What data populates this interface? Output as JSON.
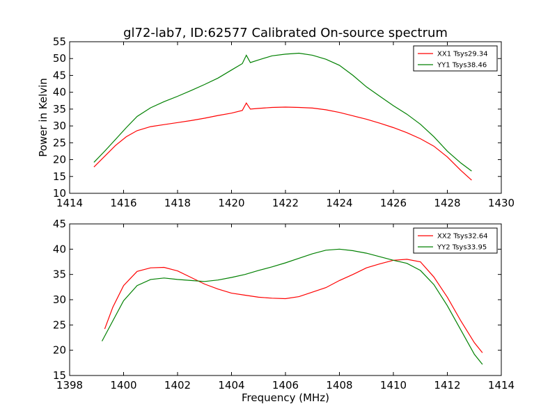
{
  "figure": {
    "title": "gl72-lab7, ID:62577 Calibrated On-source spectrum",
    "ylabel": "Power in Kelvin",
    "xlabel": "Frequency (MHz)"
  },
  "chart_data": [
    {
      "type": "line",
      "xlim": [
        1414,
        1430
      ],
      "ylim": [
        10,
        55
      ],
      "xticks": [
        1414,
        1416,
        1418,
        1420,
        1422,
        1424,
        1426,
        1428,
        1430
      ],
      "yticks": [
        10,
        15,
        20,
        25,
        30,
        35,
        40,
        45,
        50,
        55
      ],
      "legend_position": "top-right",
      "series": [
        {
          "name": "XX1 Tsys29.34",
          "color": "#ff0000",
          "x": [
            1414.9,
            1415.3,
            1415.7,
            1416.1,
            1416.5,
            1417.0,
            1417.5,
            1418.0,
            1418.5,
            1419.0,
            1419.5,
            1420.0,
            1420.4,
            1420.55,
            1420.7,
            1421.0,
            1421.5,
            1422.0,
            1422.5,
            1423.0,
            1423.5,
            1424.0,
            1424.5,
            1425.0,
            1425.5,
            1426.0,
            1426.5,
            1427.0,
            1427.5,
            1428.0,
            1428.5,
            1428.9
          ],
          "y": [
            17.8,
            21.0,
            24.2,
            26.8,
            28.6,
            29.8,
            30.4,
            31.0,
            31.6,
            32.3,
            33.1,
            33.8,
            34.6,
            36.8,
            35.0,
            35.2,
            35.5,
            35.6,
            35.5,
            35.3,
            34.8,
            34.0,
            33.0,
            32.0,
            30.8,
            29.5,
            28.0,
            26.2,
            24.0,
            20.8,
            16.8,
            13.9
          ]
        },
        {
          "name": "YY1 Tsys38.46",
          "color": "#008000",
          "x": [
            1414.9,
            1415.3,
            1415.7,
            1416.1,
            1416.5,
            1417.0,
            1417.5,
            1418.0,
            1418.5,
            1419.0,
            1419.5,
            1420.0,
            1420.4,
            1420.55,
            1420.7,
            1421.0,
            1421.5,
            1422.0,
            1422.5,
            1423.0,
            1423.5,
            1424.0,
            1424.5,
            1425.0,
            1425.5,
            1426.0,
            1426.5,
            1427.0,
            1427.5,
            1428.0,
            1428.5,
            1428.9
          ],
          "y": [
            19.2,
            22.5,
            26.0,
            29.5,
            32.8,
            35.4,
            37.2,
            38.8,
            40.5,
            42.3,
            44.2,
            46.6,
            48.5,
            51.0,
            48.8,
            49.6,
            50.8,
            51.3,
            51.6,
            51.0,
            49.8,
            48.0,
            45.0,
            41.6,
            38.8,
            36.0,
            33.5,
            30.5,
            26.8,
            22.5,
            19.0,
            16.6
          ]
        }
      ]
    },
    {
      "type": "line",
      "xlim": [
        1398,
        1414
      ],
      "ylim": [
        15,
        45
      ],
      "xticks": [
        1398,
        1400,
        1402,
        1404,
        1406,
        1408,
        1410,
        1412,
        1414
      ],
      "yticks": [
        15,
        20,
        25,
        30,
        35,
        40,
        45
      ],
      "legend_position": "top-right",
      "series": [
        {
          "name": "XX2 Tsys32.64",
          "color": "#ff0000",
          "x": [
            1399.3,
            1399.6,
            1400.0,
            1400.5,
            1401.0,
            1401.5,
            1402.0,
            1402.5,
            1403.0,
            1403.5,
            1404.0,
            1404.5,
            1405.0,
            1405.5,
            1406.0,
            1406.5,
            1407.0,
            1407.5,
            1408.0,
            1408.5,
            1409.0,
            1409.5,
            1410.0,
            1410.5,
            1411.0,
            1411.5,
            1412.0,
            1412.5,
            1413.0,
            1413.3
          ],
          "y": [
            24.2,
            28.5,
            32.8,
            35.6,
            36.3,
            36.4,
            35.7,
            34.4,
            33.1,
            32.1,
            31.3,
            30.9,
            30.5,
            30.3,
            30.2,
            30.6,
            31.5,
            32.4,
            33.8,
            35.0,
            36.3,
            37.1,
            37.8,
            38.0,
            37.5,
            34.5,
            30.5,
            25.8,
            21.5,
            19.5
          ]
        },
        {
          "name": "YY2 Tsys33.95",
          "color": "#008000",
          "x": [
            1399.2,
            1399.6,
            1400.0,
            1400.5,
            1401.0,
            1401.5,
            1402.0,
            1402.5,
            1403.0,
            1403.5,
            1404.0,
            1404.5,
            1405.0,
            1405.5,
            1406.0,
            1406.5,
            1407.0,
            1407.5,
            1408.0,
            1408.5,
            1409.0,
            1409.5,
            1410.0,
            1410.5,
            1411.0,
            1411.5,
            1412.0,
            1412.5,
            1413.0,
            1413.3
          ],
          "y": [
            21.8,
            25.8,
            29.8,
            32.8,
            34.0,
            34.3,
            34.0,
            33.8,
            33.6,
            33.9,
            34.4,
            35.0,
            35.8,
            36.5,
            37.3,
            38.2,
            39.1,
            39.8,
            40.0,
            39.7,
            39.2,
            38.5,
            37.8,
            37.2,
            35.8,
            33.0,
            28.8,
            24.0,
            19.2,
            17.2
          ]
        }
      ]
    }
  ]
}
